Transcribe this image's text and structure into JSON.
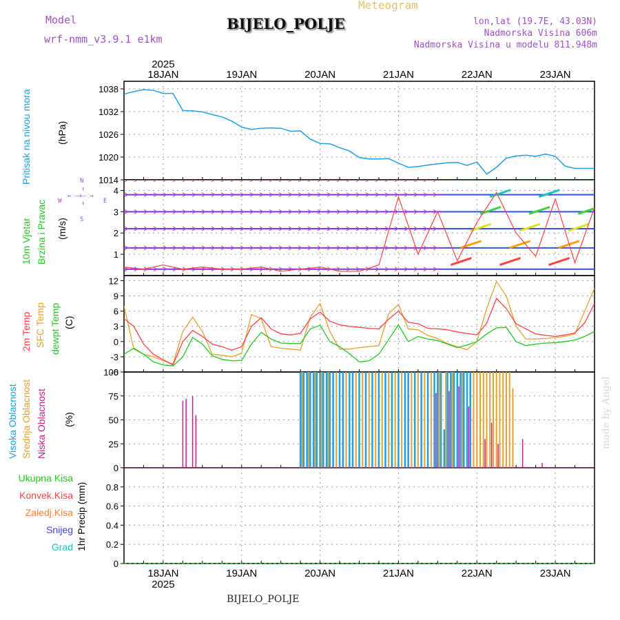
{
  "header": {
    "app_title": "Meteogram",
    "station": "BIJELO_POLJE",
    "model_label": "Model",
    "model_name": "wrf-nmm_v3.9.1 e1km",
    "lonlat": "lon,lat (19.7E, 43.03N)",
    "elevation": "Nadmorska Visina 606m",
    "model_elevation": "Nadmorska Visina u modelu 811.948m",
    "watermark": "made by Angel",
    "footer_station": "BIJELO_POLJE"
  },
  "time_axis": {
    "year": "2025",
    "days": [
      "18JAN",
      "19JAN",
      "20JAN",
      "21JAN",
      "22JAN",
      "23JAN"
    ],
    "range_hours": [
      0,
      144
    ]
  },
  "colors": {
    "pressure": "#1ea0e6",
    "temp2m": "#ff4040",
    "sfc": "#e6a030",
    "dewpt": "#22c822",
    "cloud_high": "#1ea0e6",
    "cloud_mid": "#e6a030",
    "cloud_low": "#c0208c",
    "wind_title": "#22c822",
    "rose": "#a050d0",
    "precip_total": "#22c822",
    "precip_conv": "#ff4040",
    "precip_frz": "#ff8030",
    "precip_snow": "#4040e0",
    "precip_grad": "#20c0c0"
  },
  "panel_labels": {
    "pressure": {
      "title": "Pritisak na nivou mora",
      "unit": "(hPa)"
    },
    "wind": {
      "title1": "10m Vjetar",
      "title2": "Brzina i Pravac",
      "unit": "(m/s)"
    },
    "temp": {
      "t2m": "2m Temp",
      "sfc": "SFC Temp",
      "dew": "dewpt Temp",
      "unit": "(C)"
    },
    "cloud": {
      "high": "Visoka Oblacnost",
      "mid": "Srednja Oblacnost",
      "low": "Niska Oblacnost",
      "unit": "(%)"
    },
    "precip": {
      "total": "Ukupna Kisa",
      "conv": "Konvek.Kisa",
      "frz": "Zaledj.Kisa",
      "snow": "Snijeg",
      "grad": "Grad",
      "unit": "1hr Precip (mm)"
    }
  },
  "wind_rose": {
    "n": "N",
    "s": "S",
    "e": "E",
    "w": "W"
  },
  "chart_data": [
    {
      "type": "line",
      "name": "pressure",
      "ylabel": "(hPa)",
      "ylim": [
        1014,
        1040
      ],
      "yticks": [
        1014,
        1020,
        1026,
        1032,
        1038
      ],
      "grid": true,
      "x": [
        0,
        3,
        6,
        9,
        12,
        15,
        18,
        21,
        24,
        27,
        30,
        33,
        36,
        39,
        42,
        45,
        48,
        51,
        54,
        57,
        60,
        63,
        66,
        69,
        72,
        75,
        78,
        81,
        84,
        87,
        90,
        93,
        96,
        99,
        102,
        105,
        108,
        111,
        114,
        117,
        120,
        123,
        126,
        129,
        132,
        135,
        138,
        141,
        144
      ],
      "series": [
        {
          "name": "",
          "values": [
            1036.6,
            1037.3,
            1037.8,
            1037.6,
            1036.8,
            1036.8,
            1032.3,
            1032.2,
            1031.9,
            1031.2,
            1030.6,
            1029.5,
            1027.9,
            1027.3,
            1027.6,
            1027.7,
            1027.6,
            1026.8,
            1026.9,
            1024.7,
            1023.6,
            1023.5,
            1022.5,
            1021.6,
            1019.9,
            1019.5,
            1019.5,
            1019.6,
            1018.4,
            1017.3,
            1017.5,
            1017.9,
            1018.2,
            1018.5,
            1018.6,
            1017.8,
            1018.7,
            1015.5,
            1017.3,
            1019.7,
            1020.3,
            1020.5,
            1020.2,
            1020.8,
            1020.2,
            1017.6,
            1017.0,
            1017.0,
            1017.0
          ]
        }
      ]
    },
    {
      "type": "line",
      "name": "wind",
      "ylabel": "(m/s)",
      "ylim": [
        0,
        4.5
      ],
      "yticks": [
        1,
        2,
        3,
        4
      ],
      "grid": true,
      "x": [
        0,
        6,
        12,
        18,
        24,
        30,
        36,
        42,
        48,
        54,
        60,
        66,
        72,
        78,
        84,
        90,
        96,
        102,
        108,
        114,
        120,
        126,
        132,
        138,
        144
      ],
      "series": [
        {
          "name": "",
          "values": [
            0.4,
            0.3,
            0.5,
            0.3,
            0.4,
            0.3,
            0.3,
            0.4,
            0.2,
            0.3,
            0.4,
            0.2,
            0.2,
            0.5,
            3.7,
            1.0,
            3.0,
            0.7,
            2.5,
            3.9,
            2.0,
            0.9,
            3.6,
            0.6,
            3.2
          ]
        }
      ]
    },
    {
      "type": "line",
      "name": "temperature",
      "ylabel": "(C)",
      "ylim": [
        -6,
        13
      ],
      "yticks": [
        -6,
        -3,
        0,
        3,
        6,
        9,
        12
      ],
      "grid": true,
      "x": [
        0,
        3,
        6,
        9,
        12,
        15,
        18,
        21,
        24,
        27,
        30,
        33,
        36,
        39,
        42,
        45,
        48,
        51,
        54,
        57,
        60,
        63,
        66,
        69,
        72,
        75,
        78,
        81,
        84,
        87,
        90,
        93,
        96,
        99,
        102,
        105,
        108,
        111,
        114,
        117,
        120,
        123,
        126,
        129,
        132,
        135,
        138,
        141,
        144
      ],
      "series": [
        {
          "name": "2m Temp",
          "values": [
            4.5,
            3.0,
            -0.5,
            -2.5,
            -3.6,
            -4.6,
            0.0,
            2.2,
            1.0,
            -0.5,
            -1.0,
            -1.7,
            -1.0,
            3.0,
            4.7,
            2.5,
            1.5,
            1.3,
            1.6,
            4.5,
            5.8,
            4.0,
            3.3,
            3.0,
            2.8,
            2.6,
            2.5,
            4.4,
            6.0,
            3.8,
            3.5,
            2.6,
            2.5,
            2.3,
            1.9,
            1.6,
            1.3,
            3.6,
            8.5,
            6.5,
            3.5,
            2.5,
            1.5,
            1.2,
            1.0,
            1.3,
            1.7,
            3.7,
            7.5
          ]
        },
        {
          "name": "SFC Temp",
          "values": [
            7.0,
            -1.5,
            -2.5,
            -3.0,
            -3.8,
            -4.4,
            2.0,
            4.8,
            2.0,
            -2.5,
            -2.7,
            -3.0,
            -2.3,
            5.3,
            4.5,
            -1.0,
            -1.3,
            -1.5,
            -1.7,
            4.8,
            7.5,
            2.0,
            -1.5,
            -1.5,
            -1.2,
            -1.0,
            -0.8,
            5.5,
            7.3,
            2.5,
            2.3,
            1.2,
            0.6,
            -0.4,
            -1.0,
            -1.6,
            0.0,
            6.5,
            11.8,
            9.0,
            3.0,
            0.5,
            0.5,
            0.6,
            0.8,
            1.0,
            1.5,
            6.0,
            10.5
          ]
        },
        {
          "name": "dewpt Temp",
          "values": [
            -2.5,
            -1.3,
            -2.5,
            -4.0,
            -4.6,
            -4.8,
            -3.0,
            0.8,
            -0.5,
            -2.8,
            -3.5,
            -3.8,
            -3.7,
            -0.5,
            1.8,
            0.5,
            -0.3,
            -0.4,
            -0.4,
            2.5,
            3.2,
            0.0,
            -1.0,
            -2.4,
            -4.0,
            -3.8,
            -2.5,
            0.4,
            3.3,
            0.0,
            1.0,
            0.5,
            0.2,
            -0.5,
            -1.2,
            -0.7,
            0.0,
            1.5,
            2.7,
            2.8,
            0.0,
            -0.8,
            -0.5,
            -0.3,
            -0.2,
            0.0,
            0.3,
            1.0,
            2.0
          ]
        }
      ]
    },
    {
      "type": "bar",
      "name": "cloud_cover",
      "ylabel": "(%)",
      "ylim": [
        0,
        100
      ],
      "yticks": [
        0,
        25,
        50,
        75,
        100
      ],
      "grid": true,
      "series": [
        {
          "name": "Visoka Oblacnost",
          "bars": [
            [
              54,
              100
            ],
            [
              55,
              100
            ],
            [
              56,
              100
            ],
            [
              57,
              100
            ],
            [
              58,
              100
            ],
            [
              59,
              100
            ],
            [
              60,
              100
            ],
            [
              61,
              100
            ],
            [
              62,
              100
            ],
            [
              63,
              100
            ],
            [
              64,
              100
            ],
            [
              66,
              100
            ],
            [
              67,
              100
            ],
            [
              69,
              100
            ],
            [
              70,
              100
            ],
            [
              72,
              100
            ],
            [
              74,
              100
            ],
            [
              76,
              100
            ],
            [
              78,
              100
            ],
            [
              80,
              100
            ],
            [
              82,
              100
            ],
            [
              84,
              100
            ],
            [
              86,
              100
            ],
            [
              87,
              100
            ],
            [
              89,
              100
            ],
            [
              91,
              100
            ],
            [
              93,
              100
            ],
            [
              95,
              100
            ],
            [
              96,
              100
            ],
            [
              97,
              100
            ],
            [
              98,
              40
            ],
            [
              99,
              100
            ],
            [
              100,
              100
            ],
            [
              101,
              100
            ],
            [
              102,
              100
            ],
            [
              103,
              100
            ],
            [
              104,
              100
            ],
            [
              105,
              100
            ],
            [
              106,
              100
            ]
          ]
        },
        {
          "name": "Srednja Oblacnost",
          "bars": [
            [
              54.5,
              100
            ],
            [
              56.5,
              100
            ],
            [
              58.5,
              100
            ],
            [
              60.5,
              100
            ],
            [
              62.5,
              100
            ],
            [
              65,
              100
            ],
            [
              68,
              100
            ],
            [
              71,
              100
            ],
            [
              73,
              100
            ],
            [
              75,
              100
            ],
            [
              77,
              100
            ],
            [
              79,
              100
            ],
            [
              81,
              100
            ],
            [
              83,
              100
            ],
            [
              85,
              100
            ],
            [
              88,
              100
            ],
            [
              90,
              100
            ],
            [
              92,
              100
            ],
            [
              94,
              100
            ],
            [
              96.5,
              100
            ],
            [
              98.5,
              100
            ],
            [
              100.5,
              100
            ],
            [
              103.5,
              100
            ],
            [
              107,
              100
            ],
            [
              108,
              100
            ],
            [
              109,
              100
            ],
            [
              110,
              100
            ],
            [
              111,
              100
            ],
            [
              112,
              100
            ],
            [
              113,
              100
            ],
            [
              114,
              100
            ],
            [
              115,
              100
            ],
            [
              116,
              100
            ],
            [
              117,
              100
            ],
            [
              118,
              100
            ],
            [
              119,
              83
            ]
          ]
        },
        {
          "name": "Niska Oblacnost",
          "bars": [
            [
              18,
              70
            ],
            [
              19,
              72
            ],
            [
              21,
              75
            ],
            [
              22,
              55
            ],
            [
              95.5,
              78
            ],
            [
              99.5,
              80
            ],
            [
              102.5,
              85
            ],
            [
              105.5,
              64
            ],
            [
              110.5,
              30
            ],
            [
              112.5,
              47
            ],
            [
              114.5,
              25
            ],
            [
              122,
              30
            ],
            [
              128,
              5
            ]
          ]
        }
      ]
    },
    {
      "type": "line",
      "name": "precipitation",
      "ylabel": "1hr Precip (mm)",
      "ylim": [
        0,
        1
      ],
      "yticks": [
        0,
        0.2,
        0.4,
        0.6,
        0.8
      ],
      "grid": true,
      "x": [
        0,
        144
      ],
      "series": [
        {
          "name": "Ukupna Kisa",
          "values": [
            0,
            0
          ]
        }
      ]
    }
  ]
}
